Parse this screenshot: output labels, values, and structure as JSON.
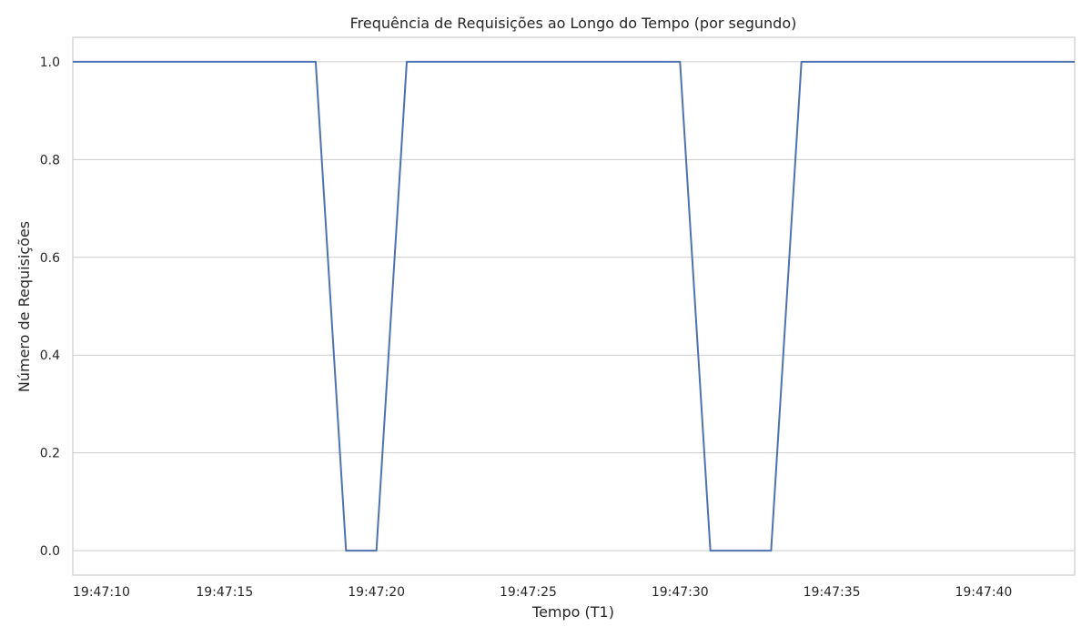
{
  "chart_data": {
    "type": "line",
    "title": "Frequência de Requisições ao Longo do Tempo (por segundo)",
    "xlabel": "Tempo (T1)",
    "ylabel": "Número de Requisições",
    "x_ticks": [
      "19:47:10",
      "19:47:15",
      "19:47:20",
      "19:47:25",
      "19:47:30",
      "19:47:35",
      "19:47:40"
    ],
    "y_ticks": [
      "0.0",
      "0.2",
      "0.4",
      "0.6",
      "0.8",
      "1.0"
    ],
    "xlim": [
      "19:47:10",
      "19:47:43"
    ],
    "ylim": [
      -0.05,
      1.05
    ],
    "grid": "horizontal",
    "series": [
      {
        "color": "#4c72b0",
        "x": [
          "19:47:10",
          "19:47:11",
          "19:47:12",
          "19:47:13",
          "19:47:14",
          "19:47:15",
          "19:47:16",
          "19:47:17",
          "19:47:18",
          "19:47:19",
          "19:47:20",
          "19:47:21",
          "19:47:22",
          "19:47:23",
          "19:47:24",
          "19:47:25",
          "19:47:26",
          "19:47:27",
          "19:47:28",
          "19:47:29",
          "19:47:30",
          "19:47:31",
          "19:47:32",
          "19:47:33",
          "19:47:34",
          "19:47:35",
          "19:47:36",
          "19:47:37",
          "19:47:38",
          "19:47:39",
          "19:47:40",
          "19:47:41",
          "19:47:42",
          "19:47:43"
        ],
        "values": [
          1,
          1,
          1,
          1,
          1,
          1,
          1,
          1,
          1,
          0,
          0,
          1,
          1,
          1,
          1,
          1,
          1,
          1,
          1,
          1,
          1,
          0,
          0,
          0,
          1,
          1,
          1,
          1,
          1,
          1,
          1,
          1,
          1,
          1
        ]
      }
    ]
  }
}
